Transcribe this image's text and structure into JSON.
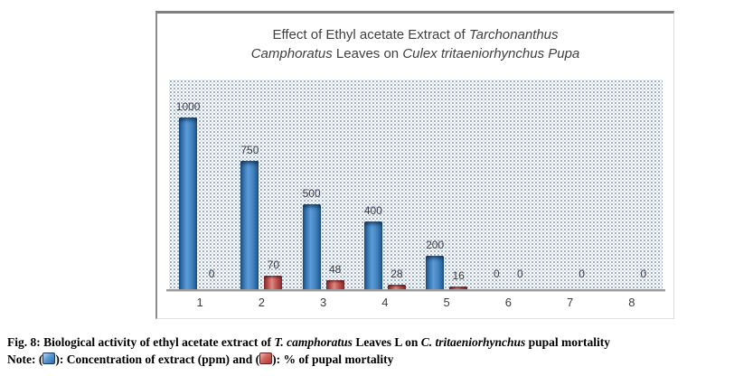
{
  "title": {
    "seg1": "Effect of Ethyl acetate Extract of ",
    "seg2_italic": "Tarchonanthus",
    "seg3_italic": "Camphoratus",
    "seg4": " Leaves on ",
    "seg5_italic": "Culex tritaeniorhynchus Pupa"
  },
  "caption": {
    "seg1": "Fig. 8: Biological activity of ethyl acetate extract of ",
    "seg2_italic": "T. camphoratus",
    "seg3": " Leaves L on ",
    "seg4_italic": "C. tritaeniorhynchus",
    "seg5": " pupal mortality",
    "note_open": "Note: (",
    "note_mid": "): Concentration of extract (ppm) and (",
    "note_close": "): % of pupal mortality"
  },
  "chart_data": {
    "type": "bar",
    "title": "Effect of Ethyl acetate Extract of Tarchonanthus Camphoratus Leaves on Culex tritaeniorhynchus Pupa",
    "categories": [
      "1",
      "2",
      "3",
      "4",
      "5",
      "6",
      "7",
      "8"
    ],
    "series": [
      {
        "name": "Concentration of extract (ppm)",
        "color": "#3A7EBF",
        "axis": "primary",
        "values": [
          1000,
          750,
          500,
          400,
          200,
          0,
          0,
          0
        ],
        "data_labels": [
          "1000",
          "750",
          "500",
          "400",
          "200",
          "0",
          "",
          ""
        ]
      },
      {
        "name": "% of pupal mortality",
        "color": "#C0504D",
        "axis": "secondary",
        "values": [
          0,
          70,
          48,
          28,
          16,
          0,
          0,
          0
        ],
        "data_labels": [
          "0",
          "70",
          "48",
          "28",
          "16",
          "0",
          "0",
          "0"
        ]
      }
    ],
    "xlabel": "",
    "ylabel": "",
    "axis_hints": {
      "primary_max": 1220,
      "secondary_max": 1020,
      "y_axis_visible": false,
      "gridlines": false,
      "legend": "none",
      "plot_background": "blue-dotted-pattern"
    }
  }
}
